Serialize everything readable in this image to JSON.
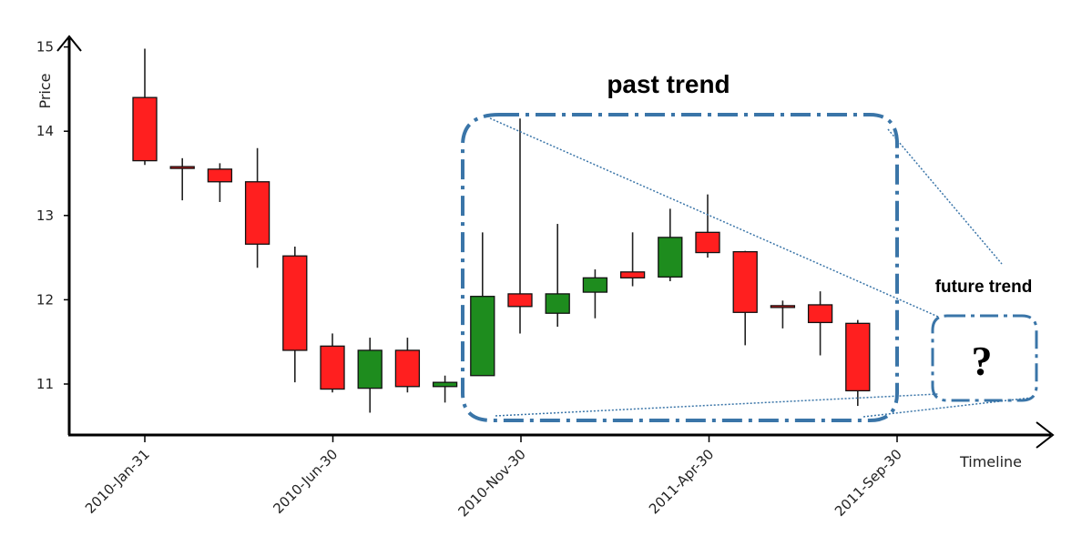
{
  "chart_data": {
    "type": "candlestick",
    "title": "",
    "xlabel": "Timeline",
    "ylabel": "Price",
    "ylim": [
      10.45,
      15.2
    ],
    "yticks": [
      11,
      12,
      13,
      14,
      15
    ],
    "xticks": [
      "2010-Jan-31",
      "2010-Jun-30",
      "2010-Nov-30",
      "2011-Apr-30",
      "2011-Sep-30"
    ],
    "colors": {
      "up": "#1e8c1e",
      "down": "#ff1f1f",
      "frame": "#3a75a8"
    },
    "candles": [
      {
        "open": 14.4,
        "high": 14.98,
        "low": 13.6,
        "close": 13.65
      },
      {
        "open": 13.58,
        "high": 13.68,
        "low": 13.18,
        "close": 13.56
      },
      {
        "open": 13.55,
        "high": 13.62,
        "low": 13.16,
        "close": 13.4
      },
      {
        "open": 13.4,
        "high": 13.8,
        "low": 12.38,
        "close": 12.66
      },
      {
        "open": 12.52,
        "high": 12.63,
        "low": 11.02,
        "close": 11.4
      },
      {
        "open": 11.45,
        "high": 11.6,
        "low": 10.9,
        "close": 10.94
      },
      {
        "open": 10.95,
        "high": 11.55,
        "low": 10.66,
        "close": 11.4
      },
      {
        "open": 11.4,
        "high": 11.55,
        "low": 10.9,
        "close": 10.97
      },
      {
        "open": 10.97,
        "high": 11.1,
        "low": 10.78,
        "close": 11.02
      },
      {
        "open": 11.1,
        "high": 12.8,
        "low": 11.1,
        "close": 12.04
      },
      {
        "open": 12.07,
        "high": 14.15,
        "low": 11.6,
        "close": 11.92
      },
      {
        "open": 11.84,
        "high": 12.9,
        "low": 11.68,
        "close": 12.07
      },
      {
        "open": 12.09,
        "high": 12.36,
        "low": 11.78,
        "close": 12.26
      },
      {
        "open": 12.33,
        "high": 12.8,
        "low": 12.16,
        "close": 12.26
      },
      {
        "open": 12.27,
        "high": 13.08,
        "low": 12.22,
        "close": 12.74
      },
      {
        "open": 12.8,
        "high": 13.25,
        "low": 12.5,
        "close": 12.56
      },
      {
        "open": 12.57,
        "high": 12.58,
        "low": 11.46,
        "close": 11.85
      },
      {
        "open": 11.93,
        "high": 11.99,
        "low": 11.66,
        "close": 11.92
      },
      {
        "open": 11.94,
        "high": 12.1,
        "low": 11.34,
        "close": 11.73
      },
      {
        "open": 11.72,
        "high": 11.76,
        "low": 10.74,
        "close": 10.92
      }
    ],
    "annotations": {
      "past": "past trend",
      "future": "future trend",
      "unknown": "?"
    }
  }
}
